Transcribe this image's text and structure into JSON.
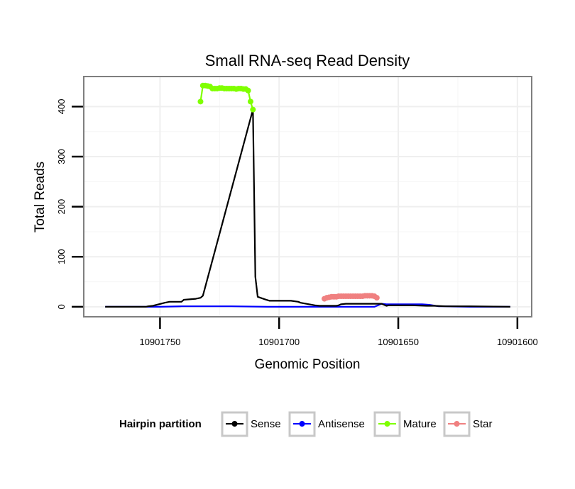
{
  "chart_data": {
    "type": "line",
    "title": "Small RNA-seq Read Density",
    "xlabel": "Genomic Position",
    "ylabel": "Total Reads",
    "x_reversed": true,
    "xlim": [
      10901782,
      10901594
    ],
    "ylim": [
      -20,
      460
    ],
    "x_ticks": [
      10901750,
      10901700,
      10901650,
      10901600
    ],
    "x_tick_labels": [
      "10901750",
      "10901700",
      "10901650",
      "10901600"
    ],
    "y_ticks": [
      0,
      100,
      200,
      300,
      400
    ],
    "y_tick_labels": [
      "0",
      "100",
      "200",
      "300",
      "400"
    ],
    "grid": true,
    "legend": {
      "title": "Hairpin partition",
      "position": "bottom",
      "entries": [
        {
          "label": "Sense",
          "color": "#000000"
        },
        {
          "label": "Antisense",
          "color": "#0000ff"
        },
        {
          "label": "Mature",
          "color": "#7fff00"
        },
        {
          "label": "Star",
          "color": "#f08080"
        }
      ]
    },
    "series": [
      {
        "name": "Sense",
        "color": "#000000",
        "x": [
          10901773,
          10901756,
          10901755,
          10901753,
          10901748,
          10901746,
          10901741,
          10901740,
          10901735,
          10901733,
          10901732,
          10901711,
          10901710,
          10901709,
          10901706,
          10901704,
          10901701,
          10901695,
          10901692,
          10901691,
          10901685,
          10901683,
          10901682,
          10901681,
          10901680,
          10901677,
          10901676,
          10901675,
          10901674,
          10901672,
          10901657,
          10901655,
          10901654,
          10901652,
          10901651,
          10901644,
          10901638,
          10901635,
          10901630,
          10901620,
          10901603
        ],
        "values": [
          0,
          0,
          1,
          2,
          8,
          10,
          10,
          14,
          16,
          18,
          22,
          394,
          60,
          20,
          15,
          12,
          12,
          12,
          10,
          8,
          3,
          2,
          2,
          2,
          2,
          2,
          2,
          3,
          5,
          6,
          6,
          2,
          3,
          3,
          3,
          3,
          2,
          2,
          1,
          1,
          0
        ]
      },
      {
        "name": "Antisense",
        "color": "#0000ff",
        "x": [
          10901773,
          10901755,
          10901750,
          10901741,
          10901720,
          10901705,
          10901700,
          10901690,
          10901680,
          10901660,
          10901659,
          10901657,
          10901655,
          10901650,
          10901640,
          10901637,
          10901633,
          10901630,
          10901620,
          10901603
        ],
        "values": [
          0,
          0,
          0,
          1,
          1,
          0,
          0,
          0,
          0,
          0,
          2,
          6,
          5,
          5,
          5,
          4,
          1,
          1,
          0,
          0
        ]
      },
      {
        "name": "Mature",
        "color": "#7fff00",
        "x": [
          10901733,
          10901732,
          10901731,
          10901730,
          10901729,
          10901728,
          10901727,
          10901726,
          10901725,
          10901724,
          10901723,
          10901722,
          10901721,
          10901720,
          10901719,
          10901718,
          10901717,
          10901716,
          10901715,
          10901714,
          10901713,
          10901712,
          10901711
        ],
        "values": [
          410,
          442,
          442,
          441,
          440,
          436,
          436,
          436,
          437,
          437,
          436,
          436,
          436,
          436,
          436,
          435,
          436,
          436,
          435,
          435,
          432,
          410,
          394
        ]
      },
      {
        "name": "Star",
        "color": "#f08080",
        "x": [
          10901681,
          10901680,
          10901679,
          10901678,
          10901677,
          10901676,
          10901675,
          10901674,
          10901673,
          10901672,
          10901671,
          10901670,
          10901669,
          10901668,
          10901667,
          10901666,
          10901665,
          10901664,
          10901663,
          10901662,
          10901661,
          10901660,
          10901659
        ],
        "values": [
          16,
          18,
          19,
          20,
          20,
          20,
          21,
          21,
          21,
          21,
          21,
          21,
          21,
          21,
          21,
          21,
          21,
          22,
          22,
          22,
          22,
          21,
          18
        ]
      }
    ]
  }
}
